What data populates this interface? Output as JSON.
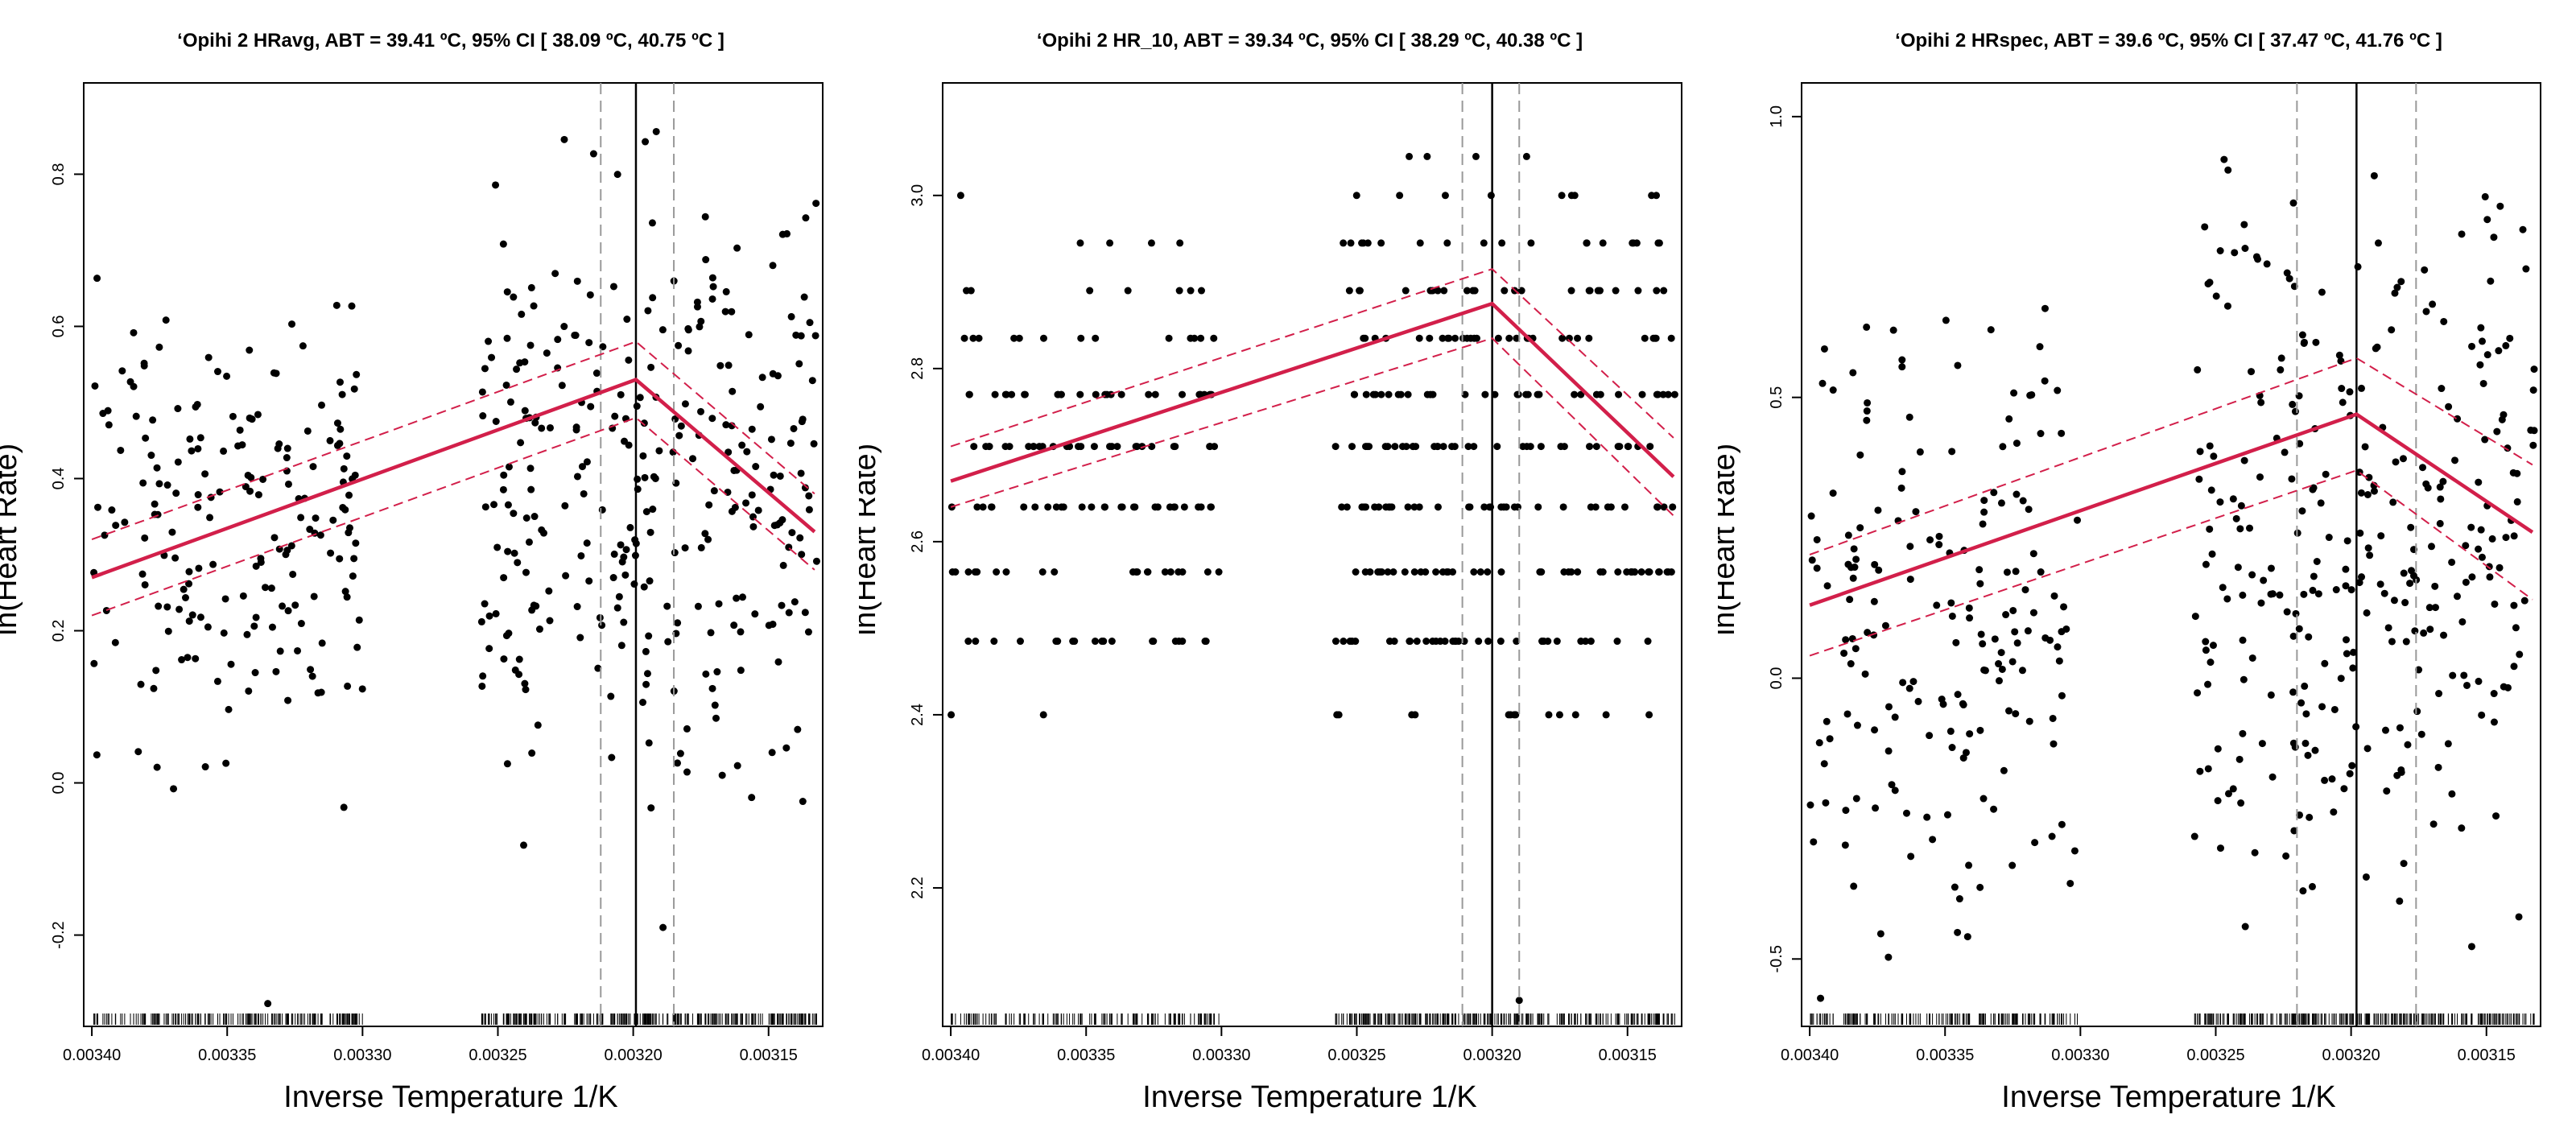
{
  "colors": {
    "fit": "#d21f4a",
    "points": "#000000",
    "ci_lines": "#999999",
    "abt_line": "#000000"
  },
  "chart_data": [
    {
      "type": "scatter",
      "title": "‘Opihi 2 HRavg, ABT =  39.41 ºC, 95% CI [ 38.09 ºC, 40.75 ºC ]",
      "xlabel": "Inverse Temperature 1/K",
      "ylabel": "ln(Heart Rate)",
      "x_reversed": true,
      "xlim": [
        0.003403,
        0.00313
      ],
      "ylim": [
        -0.32,
        0.92
      ],
      "xticks": [
        0.0034,
        0.00335,
        0.0033,
        0.00325,
        0.0032,
        0.00315
      ],
      "xtick_labels": [
        "0.00340",
        "0.00335",
        "0.00330",
        "0.00325",
        "0.00320",
        "0.00315"
      ],
      "yticks": [
        -0.2,
        0.0,
        0.2,
        0.4,
        0.6,
        0.8
      ],
      "ytick_labels": [
        "-0.2",
        "0.0",
        "0.2",
        "0.4",
        "0.6",
        "0.8"
      ],
      "abt_x": 0.003199,
      "ci_x": [
        0.003212,
        0.003185
      ],
      "fit": {
        "x": [
          0.0034,
          0.003199,
          0.003133
        ],
        "y": [
          0.27,
          0.53,
          0.33
        ]
      },
      "fit_upper": {
        "x": [
          0.0034,
          0.003199,
          0.003133
        ],
        "y": [
          0.32,
          0.58,
          0.38
        ]
      },
      "fit_lower": {
        "x": [
          0.0034,
          0.003199,
          0.003133
        ],
        "y": [
          0.22,
          0.48,
          0.28
        ]
      },
      "clusters": [
        {
          "x": [
            0.0033,
            0.0034
          ],
          "y": [
            -0.05,
            0.68
          ],
          "n": 190
        },
        {
          "x": [
            0.003132,
            0.003256
          ],
          "y": [
            -0.1,
            0.88
          ],
          "n": 300
        }
      ],
      "outliers": [
        {
          "x": 0.003335,
          "y": -0.29
        },
        {
          "x": 0.003189,
          "y": -0.19
        }
      ],
      "seed": 11
    },
    {
      "type": "scatter",
      "title": "‘Opihi 2 HR_10, ABT =  39.34 ºC, 95% CI [ 38.29 ºC, 40.38 ºC ]",
      "xlabel": "Inverse Temperature 1/K",
      "ylabel": "ln(Heart Rate)",
      "x_reversed": true,
      "xlim": [
        0.003403,
        0.00313
      ],
      "ylim": [
        2.04,
        3.13
      ],
      "xticks": [
        0.0034,
        0.00335,
        0.0033,
        0.00325,
        0.0032,
        0.00315
      ],
      "xtick_labels": [
        "0.00340",
        "0.00335",
        "0.00330",
        "0.00325",
        "0.00320",
        "0.00315"
      ],
      "yticks": [
        2.2,
        2.4,
        2.6,
        2.8,
        3.0
      ],
      "ytick_labels": [
        "2.2",
        "2.4",
        "2.6",
        "2.8",
        "3.0"
      ],
      "abt_x": 0.0032,
      "ci_x": [
        0.003211,
        0.00319
      ],
      "fit": {
        "x": [
          0.0034,
          0.0032,
          0.003133
        ],
        "y": [
          2.67,
          2.875,
          2.675
        ]
      },
      "fit_upper": {
        "x": [
          0.0034,
          0.0032,
          0.003133
        ],
        "y": [
          2.71,
          2.915,
          2.72
        ]
      },
      "fit_lower": {
        "x": [
          0.0034,
          0.0032,
          0.003133
        ],
        "y": [
          2.64,
          2.835,
          2.63
        ]
      },
      "levels": [
        2.4,
        2.485,
        2.565,
        2.64,
        2.71,
        2.77,
        2.835,
        2.89,
        2.945,
        3.0,
        3.045,
        3.09
      ],
      "clusters": [
        {
          "x": [
            0.0033,
            0.0034
          ],
          "y": [
            2.4,
            3.0
          ],
          "n": 150
        },
        {
          "x": [
            0.003132,
            0.003258
          ],
          "y": [
            2.3,
            3.1
          ],
          "n": 280
        }
      ],
      "outliers": [
        {
          "x": 0.00319,
          "y": 2.07
        }
      ],
      "seed": 23
    },
    {
      "type": "scatter",
      "title": "‘Opihi 2 HRspec, ABT =  39.6 ºC, 95% CI [ 37.47 ºC, 41.76 ºC ]",
      "xlabel": "Inverse Temperature 1/K",
      "ylabel": "ln(Heart Rate)",
      "x_reversed": true,
      "xlim": [
        0.003403,
        0.00313
      ],
      "ylim": [
        -0.62,
        1.06
      ],
      "xticks": [
        0.0034,
        0.00335,
        0.0033,
        0.00325,
        0.0032,
        0.00315
      ],
      "xtick_labels": [
        "0.00340",
        "0.00335",
        "0.00330",
        "0.00325",
        "0.00320",
        "0.00315"
      ],
      "yticks": [
        -0.5,
        0.0,
        0.5,
        1.0
      ],
      "ytick_labels": [
        "-0.5",
        "0.0",
        "0.5",
        "1.0"
      ],
      "abt_x": 0.003198,
      "ci_x": [
        0.00322,
        0.003176
      ],
      "fit": {
        "x": [
          0.0034,
          0.003198,
          0.003133
        ],
        "y": [
          0.13,
          0.47,
          0.26
        ]
      },
      "fit_upper": {
        "x": [
          0.0034,
          0.003198,
          0.003133
        ],
        "y": [
          0.22,
          0.57,
          0.38
        ]
      },
      "fit_lower": {
        "x": [
          0.0034,
          0.003198,
          0.003133
        ],
        "y": [
          0.04,
          0.37,
          0.14
        ]
      },
      "clusters": [
        {
          "x": [
            0.0033,
            0.0034
          ],
          "y": [
            -0.55,
            0.76
          ],
          "n": 180
        },
        {
          "x": [
            0.003132,
            0.003258
          ],
          "y": [
            -0.5,
            1.0
          ],
          "n": 300
        }
      ],
      "outliers": [
        {
          "x": 0.003396,
          "y": -0.57
        }
      ],
      "seed": 37
    }
  ]
}
